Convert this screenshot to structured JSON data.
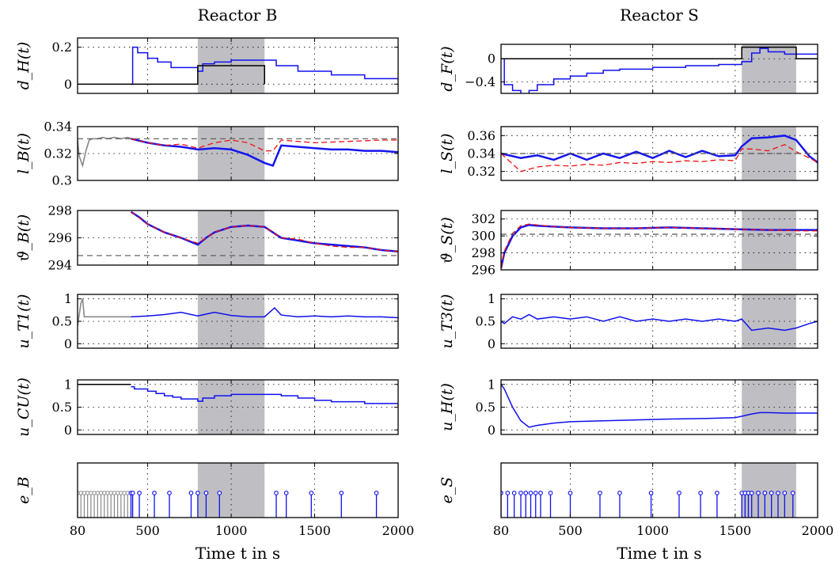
{
  "chart_data": [
    {
      "type": "line",
      "panel": "reactor-b-dH",
      "title": "Reactor B",
      "ylabel": "d_H(t)",
      "ylim": [
        -0.05,
        0.25
      ],
      "yticks": [
        0,
        0.2
      ],
      "ytick_labels": [
        "0",
        "0.2"
      ],
      "shaded": [
        800,
        1200
      ],
      "series": [
        {
          "color": "#1010ee",
          "step": true,
          "x": [
            400,
            410,
            440,
            500,
            560,
            640,
            800,
            830,
            900,
            1000,
            1100,
            1200,
            1270,
            1400,
            1600,
            1800,
            2000
          ],
          "y": [
            0,
            0.2,
            0.17,
            0.14,
            0.12,
            0.09,
            0.07,
            0.11,
            0.12,
            0.13,
            0.13,
            0.13,
            0.1,
            0.07,
            0.05,
            0.03,
            0.02
          ]
        },
        {
          "color": "#000000",
          "step": true,
          "x": [
            80,
            800,
            1200,
            1200
          ],
          "y": [
            0,
            0.1,
            0.1,
            0
          ]
        }
      ]
    },
    {
      "type": "line",
      "panel": "reactor-b-lB",
      "ylabel": "l_B(t)",
      "ylim": [
        0.3,
        0.34
      ],
      "yticks": [
        0.3,
        0.32,
        0.34
      ],
      "ytick_labels": [
        "0.3",
        "0.32",
        "0.34"
      ],
      "shaded": [
        800,
        1200
      ],
      "series": [
        {
          "color": "#888888",
          "x": [
            80,
            90,
            110,
            130,
            150,
            170,
            200,
            230,
            260,
            300,
            340,
            380,
            400
          ],
          "y": [
            0.33,
            0.318,
            0.311,
            0.322,
            0.33,
            0.331,
            0.331,
            0.332,
            0.331,
            0.332,
            0.331,
            0.332,
            0.331
          ]
        },
        {
          "color": "#1515ee",
          "x": [
            400,
            500,
            600,
            700,
            800,
            900,
            1000,
            1100,
            1200,
            1250,
            1300,
            1400,
            1500,
            1600,
            1700,
            1800,
            1900,
            2000
          ],
          "y": [
            0.331,
            0.328,
            0.326,
            0.325,
            0.323,
            0.324,
            0.323,
            0.319,
            0.313,
            0.311,
            0.326,
            0.325,
            0.324,
            0.323,
            0.323,
            0.322,
            0.322,
            0.321
          ]
        },
        {
          "color": "#ee1111",
          "dashed": true,
          "x": [
            400,
            500,
            600,
            700,
            800,
            900,
            1000,
            1100,
            1200,
            1250,
            1300,
            1500,
            1700,
            1900,
            2000
          ],
          "y": [
            0.331,
            0.328,
            0.326,
            0.327,
            0.324,
            0.328,
            0.33,
            0.328,
            0.322,
            0.322,
            0.33,
            0.328,
            0.329,
            0.33,
            0.33
          ]
        },
        {
          "color": "#555555",
          "dashed": true,
          "x": [
            80,
            2000
          ],
          "y": [
            0.331,
            0.331
          ]
        }
      ]
    },
    {
      "type": "line",
      "panel": "reactor-b-theta",
      "ylabel": "ϑ_B(t)",
      "ylim": [
        294,
        298
      ],
      "yticks": [
        294,
        296,
        298
      ],
      "ytick_labels": [
        "294",
        "296",
        "298"
      ],
      "shaded": [
        800,
        1200
      ],
      "series": [
        {
          "color": "#1515ee",
          "x": [
            400,
            450,
            500,
            600,
            700,
            800,
            850,
            900,
            1000,
            1100,
            1200,
            1300,
            1400,
            1500,
            1600,
            1700,
            1800,
            1900,
            2000
          ],
          "y": [
            297.9,
            297.5,
            297.0,
            296.4,
            296.0,
            295.5,
            296.0,
            296.4,
            296.8,
            296.9,
            296.8,
            296.0,
            295.8,
            295.6,
            295.5,
            295.4,
            295.3,
            295.1,
            295.0
          ]
        },
        {
          "color": "#ee1111",
          "dashed": true,
          "x": [
            400,
            500,
            600,
            700,
            800,
            900,
            1000,
            1100,
            1200,
            1300,
            1400,
            1500,
            1600,
            1700,
            1800,
            1900,
            2000
          ],
          "y": [
            297.9,
            297.0,
            296.4,
            296.0,
            295.6,
            296.4,
            296.8,
            296.9,
            296.8,
            296.0,
            295.9,
            295.6,
            295.4,
            295.3,
            295.3,
            295.1,
            295.0
          ]
        },
        {
          "color": "#555555",
          "dashed": true,
          "x": [
            80,
            2000
          ],
          "y": [
            294.7,
            294.7
          ]
        }
      ]
    },
    {
      "type": "line",
      "panel": "reactor-b-uT1",
      "ylabel": "u_T1(t)",
      "ylim": [
        -0.1,
        1.1
      ],
      "yticks": [
        0,
        0.5,
        1
      ],
      "ytick_labels": [
        "0",
        "0.5",
        "1"
      ],
      "shaded": [
        800,
        1200
      ],
      "series": [
        {
          "color": "#888888",
          "x": [
            80,
            100,
            110,
            120,
            400
          ],
          "y": [
            0.4,
            0.9,
            1.0,
            0.6,
            0.6
          ]
        },
        {
          "color": "#1010ee",
          "x": [
            400,
            500,
            600,
            700,
            800,
            900,
            1000,
            1100,
            1200,
            1260,
            1300,
            1400,
            1500,
            1600,
            1700,
            1800,
            1900,
            2000
          ],
          "y": [
            0.6,
            0.62,
            0.65,
            0.7,
            0.62,
            0.7,
            0.63,
            0.6,
            0.6,
            0.8,
            0.64,
            0.6,
            0.62,
            0.6,
            0.62,
            0.6,
            0.6,
            0.58
          ]
        }
      ]
    },
    {
      "type": "line",
      "panel": "reactor-b-uCU",
      "ylabel": "u_CU(t)",
      "ylim": [
        -0.1,
        1.1
      ],
      "yticks": [
        0,
        0.5,
        1
      ],
      "ytick_labels": [
        "0",
        "0.5",
        "1"
      ],
      "shaded": [
        800,
        1200
      ],
      "series": [
        {
          "color": "#000000",
          "x": [
            80,
            400
          ],
          "y": [
            1.0,
            1.0
          ]
        },
        {
          "color": "#1010ee",
          "step": true,
          "x": [
            400,
            420,
            500,
            550,
            600,
            650,
            700,
            800,
            830,
            900,
            1000,
            1200,
            1300,
            1400,
            1500,
            1600,
            1800,
            2000
          ],
          "y": [
            0.95,
            0.9,
            0.85,
            0.8,
            0.75,
            0.72,
            0.68,
            0.63,
            0.7,
            0.75,
            0.78,
            0.78,
            0.75,
            0.7,
            0.65,
            0.62,
            0.58,
            0.53
          ]
        }
      ]
    },
    {
      "type": "scatter",
      "panel": "reactor-b-eB",
      "ylabel": "e_B",
      "xlabel": "Time t in s",
      "xlim": [
        80,
        2000
      ],
      "xticks": [
        80,
        500,
        1000,
        1500,
        2000
      ],
      "xtick_labels": [
        "80",
        "500",
        "1000",
        "1500",
        "2000"
      ],
      "shaded": [
        800,
        1200
      ],
      "events_gray": [
        80,
        100,
        120,
        140,
        160,
        180,
        200,
        220,
        240,
        260,
        280,
        300,
        320,
        340,
        360,
        380,
        400
      ],
      "events_blue": [
        400,
        410,
        450,
        540,
        630,
        760,
        800,
        850,
        930,
        1270,
        1330,
        1480,
        1660,
        1870
      ]
    },
    {
      "type": "line",
      "panel": "reactor-s-dF",
      "title": "Reactor S",
      "ylabel": "d_F(t)",
      "ylim": [
        -0.6,
        0.25
      ],
      "yticks": [
        -0.4,
        0
      ],
      "ytick_labels": [
        "−0.4",
        "0"
      ],
      "shaded": [
        1540,
        1870
      ],
      "series": [
        {
          "color": "#1010ee",
          "step": true,
          "x": [
            80,
            100,
            150,
            200,
            250,
            300,
            400,
            500,
            600,
            700,
            800,
            1000,
            1200,
            1400,
            1540,
            1600,
            1650,
            1700,
            1800,
            1870,
            2000
          ],
          "y": [
            0,
            -0.45,
            -0.55,
            -0.62,
            -0.55,
            -0.45,
            -0.35,
            -0.3,
            -0.25,
            -0.2,
            -0.18,
            -0.15,
            -0.12,
            -0.1,
            -0.05,
            0.1,
            0.18,
            0.12,
            0.08,
            0.08,
            0.08
          ]
        },
        {
          "color": "#000000",
          "step": true,
          "x": [
            80,
            1540,
            1540,
            1870,
            1870,
            2000
          ],
          "y": [
            0,
            0,
            0.2,
            0.2,
            0,
            0
          ]
        }
      ]
    },
    {
      "type": "line",
      "panel": "reactor-s-lS",
      "ylabel": "l_S(t)",
      "ylim": [
        0.31,
        0.37
      ],
      "yticks": [
        0.32,
        0.34,
        0.36
      ],
      "ytick_labels": [
        "0.32",
        "0.34",
        "0.36"
      ],
      "shaded": [
        1540,
        1870
      ],
      "series": [
        {
          "color": "#1515ee",
          "x": [
            80,
            200,
            300,
            400,
            500,
            600,
            700,
            800,
            900,
            1000,
            1100,
            1200,
            1300,
            1400,
            1500,
            1540,
            1600,
            1700,
            1800,
            1870,
            1950,
            2000
          ],
          "y": [
            0.34,
            0.335,
            0.338,
            0.333,
            0.34,
            0.333,
            0.34,
            0.335,
            0.342,
            0.335,
            0.343,
            0.336,
            0.343,
            0.337,
            0.338,
            0.348,
            0.357,
            0.358,
            0.36,
            0.355,
            0.337,
            0.33
          ]
        },
        {
          "color": "#ee1111",
          "dashed": true,
          "x": [
            80,
            200,
            300,
            400,
            500,
            600,
            700,
            800,
            900,
            1000,
            1100,
            1200,
            1300,
            1400,
            1500,
            1540,
            1600,
            1700,
            1800,
            1870,
            1950,
            2000
          ],
          "y": [
            0.34,
            0.32,
            0.325,
            0.327,
            0.326,
            0.328,
            0.327,
            0.33,
            0.329,
            0.331,
            0.33,
            0.332,
            0.331,
            0.333,
            0.332,
            0.345,
            0.345,
            0.343,
            0.35,
            0.342,
            0.335,
            0.33
          ]
        },
        {
          "color": "#555555",
          "dashed": true,
          "x": [
            80,
            2000
          ],
          "y": [
            0.34,
            0.34
          ]
        }
      ]
    },
    {
      "type": "line",
      "panel": "reactor-s-theta",
      "ylabel": "ϑ_S(t)",
      "ylim": [
        296,
        303
      ],
      "yticks": [
        296,
        298,
        300,
        302
      ],
      "ytick_labels": [
        "296",
        "298",
        "300",
        "302"
      ],
      "shaded": [
        1540,
        1870
      ],
      "series": [
        {
          "color": "#1515ee",
          "x": [
            80,
            100,
            150,
            200,
            250,
            300,
            400,
            500,
            700,
            900,
            1100,
            1300,
            1500,
            1700,
            1900,
            2000
          ],
          "y": [
            296.2,
            298.0,
            300.0,
            301.0,
            301.3,
            301.2,
            301.1,
            301.0,
            300.9,
            300.9,
            301.0,
            300.9,
            300.8,
            300.7,
            300.7,
            300.7
          ]
        },
        {
          "color": "#ee1111",
          "dashed": true,
          "x": [
            80,
            100,
            150,
            200,
            250,
            300,
            400,
            500,
            700,
            900,
            1100,
            1300,
            1500,
            1700,
            1900,
            2000
          ],
          "y": [
            296.2,
            298.2,
            300.3,
            301.2,
            301.4,
            301.3,
            301.1,
            301.0,
            300.9,
            300.9,
            301.0,
            300.9,
            300.8,
            300.7,
            300.6,
            300.6
          ]
        },
        {
          "color": "#555555",
          "dashed": true,
          "x": [
            80,
            2000
          ],
          "y": [
            300.2,
            300.2
          ]
        }
      ]
    },
    {
      "type": "line",
      "panel": "reactor-s-uT3",
      "ylabel": "u_T3(t)",
      "ylim": [
        -0.1,
        1.1
      ],
      "yticks": [
        0,
        0.5,
        1
      ],
      "ytick_labels": [
        "0",
        "0.5",
        "1"
      ],
      "shaded": [
        1540,
        1870
      ],
      "series": [
        {
          "color": "#1010ee",
          "x": [
            80,
            100,
            150,
            200,
            250,
            300,
            400,
            500,
            600,
            700,
            800,
            900,
            1000,
            1100,
            1200,
            1300,
            1400,
            1500,
            1540,
            1600,
            1700,
            1800,
            1870,
            1950,
            2000
          ],
          "y": [
            0.5,
            0.45,
            0.6,
            0.55,
            0.65,
            0.55,
            0.6,
            0.55,
            0.6,
            0.5,
            0.6,
            0.5,
            0.55,
            0.5,
            0.55,
            0.5,
            0.55,
            0.5,
            0.55,
            0.3,
            0.35,
            0.3,
            0.35,
            0.45,
            0.5
          ]
        }
      ]
    },
    {
      "type": "line",
      "panel": "reactor-s-uH",
      "ylabel": "u_H(t)",
      "ylim": [
        -0.1,
        1.1
      ],
      "yticks": [
        0,
        0.5,
        1
      ],
      "ytick_labels": [
        "0",
        "0.5",
        "1"
      ],
      "shaded": [
        1540,
        1870
      ],
      "series": [
        {
          "color": "#1010ee",
          "x": [
            80,
            100,
            150,
            200,
            250,
            300,
            400,
            500,
            700,
            900,
            1100,
            1300,
            1500,
            1540,
            1600,
            1650,
            1700,
            1800,
            1900,
            2000
          ],
          "y": [
            1.0,
            0.9,
            0.5,
            0.2,
            0.06,
            0.1,
            0.15,
            0.18,
            0.2,
            0.22,
            0.24,
            0.25,
            0.27,
            0.3,
            0.35,
            0.38,
            0.38,
            0.37,
            0.37,
            0.37
          ]
        }
      ]
    },
    {
      "type": "scatter",
      "panel": "reactor-s-eS",
      "ylabel": "e_S",
      "xlabel": "Time t in s",
      "xlim": [
        80,
        2000
      ],
      "xticks": [
        80,
        500,
        1000,
        1500,
        2000
      ],
      "xtick_labels": [
        "80",
        "500",
        "1000",
        "1500",
        "2000"
      ],
      "shaded": [
        1540,
        1870
      ],
      "events_blue": [
        80,
        120,
        160,
        200,
        230,
        260,
        290,
        320,
        380,
        500,
        680,
        800,
        990,
        1160,
        1290,
        1390,
        1540,
        1560,
        1580,
        1600,
        1640,
        1680,
        1720,
        1760,
        1800,
        1850
      ]
    }
  ]
}
